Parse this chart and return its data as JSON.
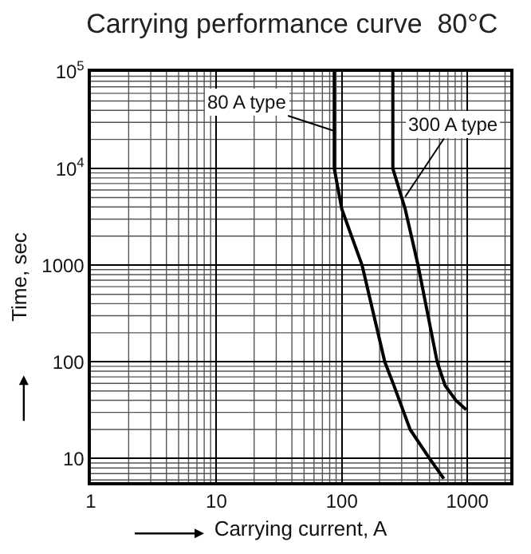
{
  "chart_data": {
    "type": "line",
    "title": "Carrying performance curve  80°C",
    "xlabel": "Carrying current, A",
    "ylabel": "Time, sec",
    "log": "xy",
    "grid": true,
    "marker": "none",
    "line_style": "solid",
    "xlim": [
      1,
      2200
    ],
    "xticks": [
      1,
      10,
      100,
      1000
    ],
    "ylim": [
      5.7,
      100000
    ],
    "yticks": [
      10,
      100,
      1000,
      {
        "value": 10000,
        "label": "10$^{4}$"
      },
      {
        "value": 100000,
        "label": "10$^{5}$"
      }
    ],
    "series": [
      {
        "color": "#000000",
        "x": [
          87,
          87,
          100,
          145,
          220,
          260,
          350,
          500,
          650
        ],
        "values": [
          100000,
          10000,
          3800,
          1000,
          100,
          57,
          20,
          10,
          6.2
        ]
      },
      {
        "color": "#000000",
        "x": [
          255,
          255,
          320,
          405,
          575,
          665,
          810,
          980
        ],
        "values": [
          100000,
          10000,
          3800,
          1000,
          100,
          57,
          40,
          32
        ]
      }
    ],
    "annotations": [
      {
        "text": "80 A type",
        "x": 87,
        "y": 24500
      },
      {
        "text": "300 A type",
        "x": 320,
        "y": 5100
      }
    ]
  }
}
